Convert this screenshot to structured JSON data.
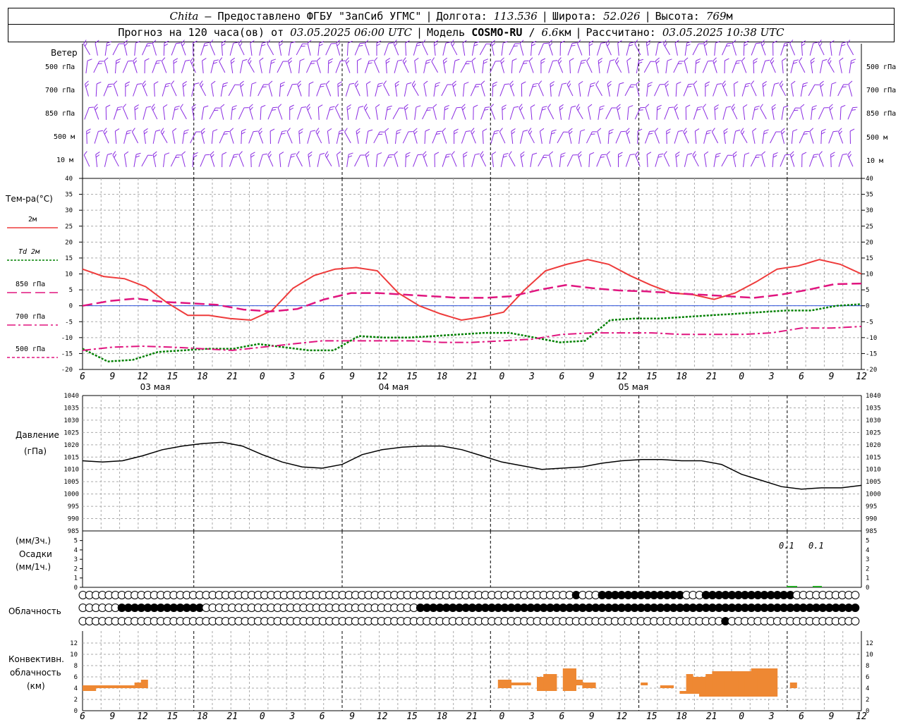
{
  "header": {
    "station": "Chita",
    "dash": "—",
    "provider": "Предоставлено ФГБУ \"ЗапСиб УГМС\"",
    "lon_label": "Долгота:",
    "lon_value": "113.536",
    "lat_label": "Широта:",
    "lat_value": "52.026",
    "alt_label": "Высота:",
    "alt_value": "769",
    "alt_unit": "м",
    "forecast_label": "Прогноз на 120 часа(ов) от",
    "forecast_time": "03.05.2025 06:00 UTC",
    "model_label": "Модель",
    "model_name": "COSMO-RU",
    "model_res": "6.6",
    "model_res_unit": "км",
    "calc_label": "Рассчитано:",
    "calc_time": "03.05.2025 10:38 UTC"
  },
  "panels": {
    "wind": {
      "title": "Ветер",
      "levels": [
        "500 гПа",
        "700 гПа",
        "850 гПа",
        "500 м",
        "10  м"
      ]
    },
    "temperature": {
      "title": "Тем-ра(°С)",
      "legend": [
        "2м",
        "Td  2м",
        "850 гПа",
        "700 гПа",
        "500 гПа"
      ]
    },
    "pressure": {
      "title": "Давление",
      "unit": "(гПа)"
    },
    "precip": {
      "unit_3h": "(мм/3ч.)",
      "title": "Осадки",
      "unit_1h": "(мм/1ч.)",
      "annotations": [
        "0.1",
        "0.1"
      ]
    },
    "cloud": {
      "title": "Облачность"
    },
    "convective": {
      "title": [
        "Конвективн.",
        "облачность",
        "(км)"
      ]
    }
  },
  "x_axis": {
    "hour_ticks": [
      "6",
      "9",
      "12",
      "15",
      "18",
      "21",
      "0",
      "3",
      "6",
      "9",
      "12",
      "15",
      "18",
      "21",
      "0",
      "3",
      "6",
      "9",
      "12",
      "15",
      "18",
      "21",
      "0",
      "3",
      "6",
      "9",
      "12"
    ],
    "dates": [
      "03 мая",
      "04 мая",
      "05 мая"
    ]
  },
  "colors": {
    "wind": "#8a2be2",
    "t2m": "#ee3b3b",
    "td2m": "#008000",
    "t850": "#e0157f",
    "t700": "#e0157f",
    "t500": "#e0157f",
    "pressure": "#000000",
    "precip": "#22aa22",
    "convective": "#ee8833"
  },
  "chart_data": [
    {
      "type": "line",
      "name": "temperature",
      "x_start": "03.05.2025 06:00 UTC",
      "step_hours": 3,
      "ylim": [
        -20,
        40
      ],
      "series": [
        {
          "name": "2м",
          "values": [
            11.5,
            9.2,
            8.5,
            6,
            1,
            -3,
            -3,
            -4,
            -4.5,
            -1.5,
            5.5,
            9.5,
            11.5,
            12,
            11,
            4,
            0,
            -2.5,
            -4.5,
            -3.5,
            -2,
            5,
            11,
            13,
            14.5,
            13,
            9.5,
            6.5,
            4,
            3.5,
            2,
            4,
            7.5,
            11.5,
            12.5,
            14.5,
            13,
            10
          ]
        },
        {
          "name": "Td  2м",
          "values": [
            -13.5,
            -17.5,
            -17,
            -14.5,
            -14,
            -13.5,
            -13.5,
            -12,
            -13,
            -14,
            -14,
            -9.5,
            -10,
            -10,
            -9.5,
            -9,
            -8.5,
            -8.5,
            -10,
            -11.5,
            -11,
            -4.5,
            -4,
            -4,
            -3.5,
            -3,
            -2.5,
            -2,
            -1.5,
            -1.5,
            0,
            0.5
          ]
        },
        {
          "name": "850 гПа",
          "values": [
            0,
            1.5,
            2.3,
            1.2,
            0.8,
            0.3,
            -1.2,
            -1.8,
            -1,
            2,
            4,
            4,
            3.5,
            3,
            2.5,
            2.5,
            3,
            5,
            6.5,
            5.5,
            4.8,
            4.5,
            4,
            3.5,
            3,
            2.5,
            3.5,
            5,
            6.8,
            7
          ]
        },
        {
          "name": "700 гПа",
          "values": [
            -14,
            -13,
            -12.7,
            -13,
            -13.5,
            -14,
            -13,
            -12,
            -11,
            -11,
            -11,
            -11,
            -11.5,
            -11.5,
            -11,
            -10.5,
            -9,
            -8.5,
            -8.5,
            -8.5,
            -9,
            -9,
            -9,
            -8.5,
            -7,
            -7,
            -6.5
          ]
        },
        {
          "name": "500 гПа",
          "values": []
        }
      ]
    },
    {
      "type": "line",
      "name": "pressure",
      "x_start": "03.05.2025 06:00 UTC",
      "step_hours": 3,
      "ylim": [
        985,
        1040
      ],
      "values": [
        1013.5,
        1013,
        1013.5,
        1015.5,
        1018,
        1019.5,
        1020.5,
        1021,
        1019.5,
        1016,
        1013,
        1011,
        1010.5,
        1012,
        1016,
        1018,
        1019,
        1019.5,
        1019.5,
        1018,
        1015.5,
        1013,
        1011.5,
        1010,
        1010.5,
        1011,
        1012.5,
        1013.5,
        1014,
        1014,
        1013.5,
        1013.5,
        1012,
        1008,
        1005.5,
        1003,
        1002,
        1002.5,
        1002.5,
        1003.5
      ]
    },
    {
      "type": "bar",
      "name": "precipitation",
      "ylim": [
        0,
        5
      ],
      "values": [
        0.1,
        0.1
      ]
    },
    {
      "type": "bar",
      "name": "convective_cloud",
      "x_start": "03.05.2025 06:00 UTC",
      "step_hours": 1,
      "ylim": [
        0,
        14
      ],
      "bars": [
        {
          "h": 0,
          "base": 3.5,
          "top": 4.5
        },
        {
          "h": 1,
          "base": 3.5,
          "top": 4.5
        },
        {
          "h": 2,
          "base": 4,
          "top": 4.5
        },
        {
          "h": 3,
          "base": 4,
          "top": 4.5
        },
        {
          "h": 4,
          "base": 4,
          "top": 4.5
        },
        {
          "h": 5,
          "base": 4,
          "top": 4.5
        },
        {
          "h": 6,
          "base": 4,
          "top": 4.5
        },
        {
          "h": 7,
          "base": 4,
          "top": 4.5
        },
        {
          "h": 8,
          "base": 4,
          "top": 5
        },
        {
          "h": 9,
          "base": 4,
          "top": 5.5
        },
        {
          "h": 64,
          "base": 4,
          "top": 5.5
        },
        {
          "h": 65,
          "base": 4,
          "top": 5.5
        },
        {
          "h": 66,
          "base": 4.5,
          "top": 5
        },
        {
          "h": 67,
          "base": 4.5,
          "top": 5
        },
        {
          "h": 68,
          "base": 4.5,
          "top": 5
        },
        {
          "h": 70,
          "base": 3.5,
          "top": 6
        },
        {
          "h": 71,
          "base": 3.5,
          "top": 6.5
        },
        {
          "h": 72,
          "base": 3.5,
          "top": 6.5
        },
        {
          "h": 74,
          "base": 3.5,
          "top": 7.5
        },
        {
          "h": 75,
          "base": 3.5,
          "top": 7.5
        },
        {
          "h": 76,
          "base": 4.5,
          "top": 5.5
        },
        {
          "h": 77,
          "base": 4,
          "top": 5
        },
        {
          "h": 78,
          "base": 4,
          "top": 5
        },
        {
          "h": 86,
          "base": 4.5,
          "top": 5
        },
        {
          "h": 89,
          "base": 4,
          "top": 4.5
        },
        {
          "h": 90,
          "base": 4,
          "top": 4.5
        },
        {
          "h": 92,
          "base": 3,
          "top": 3.5
        },
        {
          "h": 93,
          "base": 3,
          "top": 6.5
        },
        {
          "h": 94,
          "base": 3,
          "top": 6
        },
        {
          "h": 95,
          "base": 2.5,
          "top": 6
        },
        {
          "h": 96,
          "base": 2.5,
          "top": 6.5
        },
        {
          "h": 97,
          "base": 2.5,
          "top": 7
        },
        {
          "h": 98,
          "base": 2.5,
          "top": 7
        },
        {
          "h": 99,
          "base": 2.5,
          "top": 7
        },
        {
          "h": 100,
          "base": 2.5,
          "top": 7
        },
        {
          "h": 101,
          "base": 2.5,
          "top": 7
        },
        {
          "h": 102,
          "base": 2.5,
          "top": 7
        },
        {
          "h": 103,
          "base": 2.5,
          "top": 7.5
        },
        {
          "h": 104,
          "base": 2.5,
          "top": 7.5
        },
        {
          "h": 105,
          "base": 2.5,
          "top": 7.5
        },
        {
          "h": 106,
          "base": 2.5,
          "top": 7.5
        },
        {
          "h": 109,
          "base": 4,
          "top": 5
        }
      ]
    },
    {
      "type": "table",
      "name": "cloud_cover",
      "rows": [
        {
          "name": "upper",
          "filled": [
            76,
            80,
            81,
            82,
            83,
            84,
            85,
            86,
            87,
            88,
            89,
            90,
            91,
            92,
            96,
            97,
            98,
            99,
            100,
            101,
            102,
            103,
            104,
            105,
            106,
            107,
            108,
            109
          ]
        },
        {
          "name": "middle",
          "filled": [
            6,
            7,
            8,
            9,
            10,
            11,
            12,
            13,
            14,
            15,
            16,
            17,
            18,
            52,
            53,
            54,
            55,
            56,
            57,
            58,
            59,
            60,
            61,
            62,
            63,
            64,
            65,
            66,
            67,
            68,
            69,
            70,
            71,
            72,
            73,
            74,
            75,
            76,
            77,
            78,
            79,
            80,
            81,
            82,
            83,
            84,
            85,
            86,
            87,
            88,
            89,
            90,
            91,
            92,
            93,
            94,
            95,
            96,
            97,
            98,
            99,
            100,
            101,
            102,
            103,
            104,
            105,
            106,
            107,
            108,
            109,
            110,
            111,
            112,
            113,
            114,
            115,
            116,
            117,
            118,
            119
          ]
        },
        {
          "name": "lower",
          "filled": [
            99
          ]
        }
      ]
    }
  ]
}
